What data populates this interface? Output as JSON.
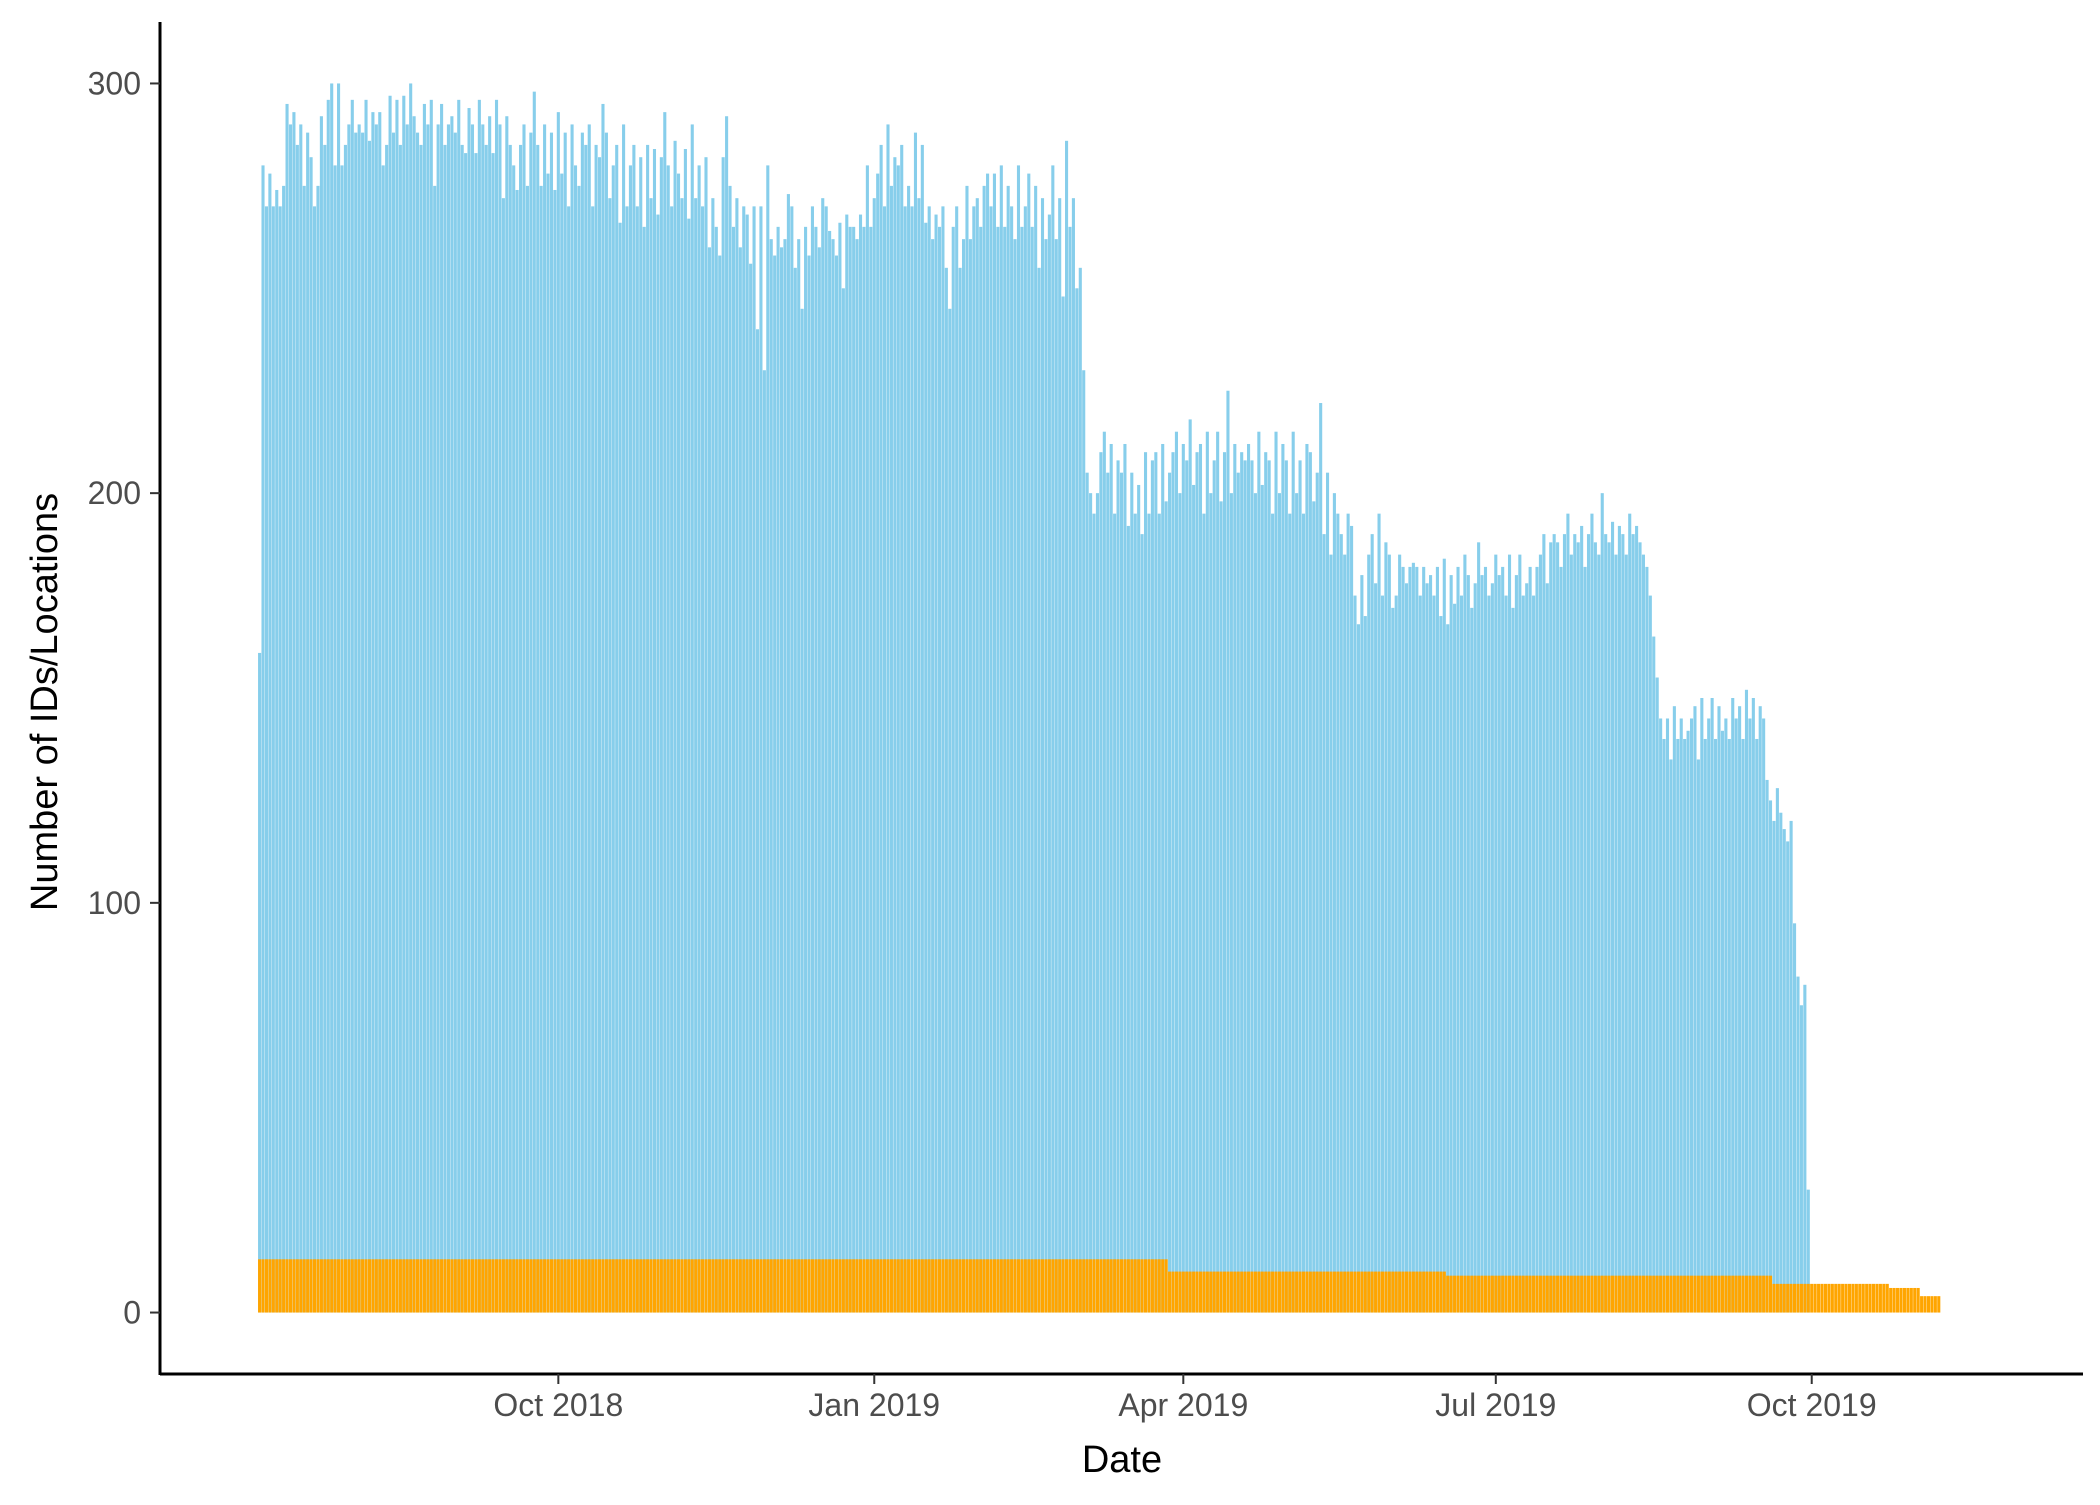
{
  "chart_data": {
    "type": "bar",
    "xlabel": "Date",
    "ylabel": "Number of IDs/Locations",
    "ylim": [
      -15,
      315
    ],
    "xlim": [
      "2018-06-07",
      "2019-12-19"
    ],
    "date_start": "2018-07-06",
    "grid": false,
    "legend": "none",
    "x_ticks": [
      {
        "date": "2018-10-01",
        "label": "Oct 2018"
      },
      {
        "date": "2019-01-01",
        "label": "Jan 2019"
      },
      {
        "date": "2019-04-01",
        "label": "Apr 2019"
      },
      {
        "date": "2019-07-01",
        "label": "Jul 2019"
      },
      {
        "date": "2019-10-01",
        "label": "Oct 2019"
      }
    ],
    "y_ticks": [
      {
        "value": 0,
        "label": "0"
      },
      {
        "value": 100,
        "label": "100"
      },
      {
        "value": 200,
        "label": "200"
      },
      {
        "value": 300,
        "label": "300"
      }
    ],
    "series": [
      {
        "color": "#87CEEB",
        "values": [
          161,
          280,
          270,
          278,
          270,
          274,
          270,
          275,
          295,
          290,
          293,
          285,
          290,
          275,
          288,
          282,
          270,
          275,
          292,
          285,
          296,
          300,
          280,
          300,
          280,
          285,
          290,
          296,
          288,
          290,
          288,
          296,
          286,
          293,
          290,
          293,
          280,
          285,
          297,
          288,
          296,
          285,
          297,
          290,
          300,
          292,
          288,
          285,
          295,
          290,
          296,
          275,
          290,
          295,
          285,
          290,
          292,
          288,
          296,
          285,
          283,
          294,
          290,
          283,
          296,
          290,
          285,
          292,
          283,
          296,
          290,
          272,
          292,
          285,
          280,
          274,
          285,
          290,
          275,
          288,
          298,
          285,
          275,
          290,
          278,
          288,
          274,
          293,
          278,
          288,
          270,
          290,
          280,
          275,
          288,
          285,
          290,
          270,
          285,
          282,
          295,
          288,
          272,
          280,
          285,
          266,
          290,
          270,
          280,
          285,
          270,
          282,
          265,
          285,
          272,
          284,
          268,
          282,
          293,
          280,
          270,
          286,
          278,
          272,
          284,
          267,
          290,
          272,
          280,
          270,
          282,
          260,
          272,
          265,
          258,
          282,
          292,
          275,
          265,
          272,
          260,
          270,
          268,
          256,
          270,
          240,
          270,
          230,
          280,
          262,
          258,
          265,
          260,
          262,
          273,
          270,
          255,
          262,
          245,
          265,
          258,
          270,
          265,
          260,
          272,
          270,
          264,
          262,
          258,
          266,
          250,
          268,
          265,
          265,
          262,
          268,
          265,
          280,
          265,
          272,
          278,
          285,
          270,
          290,
          275,
          282,
          280,
          285,
          270,
          275,
          270,
          288,
          272,
          285,
          266,
          270,
          262,
          268,
          265,
          270,
          255,
          245,
          265,
          270,
          255,
          262,
          275,
          262,
          270,
          272,
          265,
          275,
          278,
          270,
          278,
          265,
          280,
          265,
          275,
          270,
          262,
          280,
          265,
          270,
          278,
          265,
          275,
          255,
          272,
          262,
          268,
          280,
          262,
          272,
          248,
          286,
          265,
          272,
          250,
          255,
          230,
          205,
          200,
          195,
          200,
          210,
          215,
          205,
          212,
          195,
          208,
          205,
          212,
          192,
          205,
          195,
          202,
          190,
          210,
          195,
          208,
          210,
          195,
          212,
          198,
          205,
          210,
          215,
          200,
          212,
          208,
          218,
          202,
          210,
          212,
          195,
          215,
          200,
          208,
          215,
          198,
          210,
          225,
          200,
          212,
          205,
          210,
          208,
          212,
          208,
          200,
          215,
          202,
          210,
          208,
          195,
          215,
          200,
          212,
          208,
          195,
          215,
          200,
          208,
          195,
          212,
          210,
          198,
          205,
          222,
          190,
          205,
          185,
          200,
          195,
          190,
          185,
          195,
          192,
          175,
          168,
          180,
          170,
          185,
          190,
          178,
          195,
          175,
          188,
          185,
          172,
          175,
          185,
          182,
          178,
          182,
          183,
          182,
          175,
          182,
          178,
          180,
          175,
          182,
          170,
          184,
          168,
          180,
          173,
          182,
          175,
          185,
          180,
          172,
          178,
          188,
          180,
          182,
          175,
          178,
          185,
          180,
          182,
          175,
          185,
          172,
          180,
          185,
          175,
          178,
          182,
          175,
          182,
          185,
          190,
          178,
          188,
          190,
          188,
          182,
          190,
          195,
          185,
          190,
          188,
          192,
          182,
          190,
          195,
          188,
          185,
          200,
          190,
          188,
          193,
          185,
          192,
          190,
          185,
          195,
          190,
          192,
          188,
          185,
          182,
          175,
          165,
          155,
          145,
          140,
          145,
          135,
          148,
          140,
          145,
          140,
          142,
          145,
          148,
          135,
          150,
          140,
          145,
          150,
          140,
          148,
          142,
          145,
          140,
          150,
          145,
          148,
          140,
          152,
          145,
          150,
          140,
          148,
          145,
          130,
          125,
          120,
          128,
          122,
          118,
          115,
          120,
          95,
          82,
          75,
          80,
          30
        ]
      },
      {
        "color": "#FFA500",
        "segments": [
          {
            "from": "2018-07-06",
            "to": "2019-03-27",
            "value": 13
          },
          {
            "from": "2019-03-28",
            "to": "2019-06-16",
            "value": 10
          },
          {
            "from": "2019-06-17",
            "to": "2019-09-19",
            "value": 9
          },
          {
            "from": "2019-09-20",
            "to": "2019-10-23",
            "value": 7
          },
          {
            "from": "2019-10-24",
            "to": "2019-11-01",
            "value": 6
          },
          {
            "from": "2019-11-02",
            "to": "2019-11-07",
            "value": 4
          }
        ]
      }
    ]
  }
}
